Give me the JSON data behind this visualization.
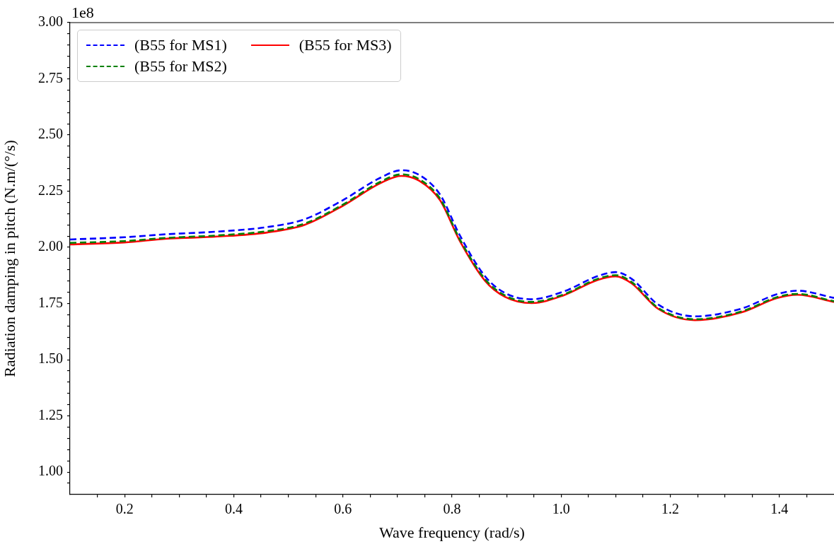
{
  "chart_data": {
    "type": "line",
    "xlabel": "Wave frequency (rad/s)",
    "ylabel": "Radiation damping in pitch (N.m/(°/s)",
    "annotations": [
      "1e8"
    ],
    "x": [
      0.1,
      0.2,
      0.275,
      0.37,
      0.461,
      0.53,
      0.6,
      0.669,
      0.707,
      0.74,
      0.778,
      0.814,
      0.861,
      0.897,
      0.946,
      1.004,
      1.067,
      1.1,
      1.129,
      1.178,
      1.245,
      1.331,
      1.395,
      1.433,
      1.5
    ],
    "series": [
      {
        "name": "(B55 for MS1)",
        "color": "#0000ff",
        "line_style": "dashed",
        "values": [
          2.035,
          2.045,
          2.058,
          2.07,
          2.09,
          2.125,
          2.21,
          2.31,
          2.343,
          2.322,
          2.235,
          2.055,
          1.87,
          1.797,
          1.769,
          1.803,
          1.872,
          1.89,
          1.86,
          1.745,
          1.693,
          1.728,
          1.791,
          1.807,
          1.775
        ]
      },
      {
        "name": "(B55 for MS2)",
        "color": "#008000",
        "line_style": "dashed",
        "values": [
          2.02,
          2.028,
          2.042,
          2.053,
          2.072,
          2.106,
          2.19,
          2.292,
          2.325,
          2.303,
          2.217,
          2.037,
          1.857,
          1.786,
          1.757,
          1.79,
          1.86,
          1.876,
          1.846,
          1.73,
          1.68,
          1.715,
          1.778,
          1.793,
          1.76
        ]
      },
      {
        "name": "(B55 for MS3)",
        "color": "#ff0000",
        "line_style": "solid",
        "values": [
          2.013,
          2.022,
          2.038,
          2.048,
          2.066,
          2.1,
          2.185,
          2.286,
          2.318,
          2.296,
          2.21,
          2.03,
          1.85,
          1.78,
          1.752,
          1.786,
          1.855,
          1.871,
          1.84,
          1.726,
          1.676,
          1.711,
          1.774,
          1.789,
          1.757
        ]
      }
    ],
    "xlim": [
      0.1,
      1.5
    ],
    "xticks": [
      {
        "value": 0.15,
        "label": null
      },
      0.2,
      {
        "value": 0.25,
        "label": null
      },
      {
        "value": 0.3,
        "label": null
      },
      {
        "value": 0.35,
        "label": null
      },
      0.4,
      {
        "value": 0.45,
        "label": null
      },
      {
        "value": 0.5,
        "label": null
      },
      {
        "value": 0.55,
        "label": null
      },
      0.6,
      {
        "value": 0.65,
        "label": null
      },
      {
        "value": 0.7,
        "label": null
      },
      {
        "value": 0.75,
        "label": null
      },
      0.8,
      {
        "value": 0.85,
        "label": null
      },
      {
        "value": 0.9,
        "label": null
      },
      {
        "value": 0.95,
        "label": null
      },
      {
        "value": 1.0,
        "label": "1.0"
      },
      {
        "value": 1.05,
        "label": null
      },
      {
        "value": 1.1,
        "label": null
      },
      {
        "value": 1.15,
        "label": null
      },
      1.2,
      {
        "value": 1.25,
        "label": null
      },
      {
        "value": 1.3,
        "label": null
      },
      {
        "value": 1.35,
        "label": null
      },
      1.4,
      {
        "value": 1.45,
        "label": null
      }
    ],
    "ylim": [
      0.9,
      3.0
    ],
    "yticks": [
      {
        "value": 0.95,
        "label": null
      },
      {
        "value": 1.0,
        "label": "1.00"
      },
      {
        "value": 1.05,
        "label": null
      },
      {
        "value": 1.1,
        "label": null
      },
      {
        "value": 1.15,
        "label": null
      },
      {
        "value": 1.2,
        "label": null
      },
      1.25,
      {
        "value": 1.3,
        "label": null
      },
      {
        "value": 1.35,
        "label": null
      },
      {
        "value": 1.4,
        "label": null
      },
      {
        "value": 1.45,
        "label": null
      },
      {
        "value": 1.5,
        "label": "1.50"
      },
      {
        "value": 1.55,
        "label": null
      },
      {
        "value": 1.6,
        "label": null
      },
      {
        "value": 1.65,
        "label": null
      },
      {
        "value": 1.7,
        "label": null
      },
      1.75,
      {
        "value": 1.8,
        "label": null
      },
      {
        "value": 1.85,
        "label": null
      },
      {
        "value": 1.9,
        "label": null
      },
      {
        "value": 1.95,
        "label": null
      },
      {
        "value": 2.0,
        "label": "2.00"
      },
      {
        "value": 2.05,
        "label": null
      },
      {
        "value": 2.1,
        "label": null
      },
      {
        "value": 2.15,
        "label": null
      },
      {
        "value": 2.2,
        "label": null
      },
      2.25,
      {
        "value": 2.3,
        "label": null
      },
      {
        "value": 2.35,
        "label": null
      },
      {
        "value": 2.4,
        "label": null
      },
      {
        "value": 2.45,
        "label": null
      },
      {
        "value": 2.5,
        "label": "2.50"
      },
      {
        "value": 2.55,
        "label": null
      },
      {
        "value": 2.6,
        "label": null
      },
      {
        "value": 2.65,
        "label": null
      },
      {
        "value": 2.7,
        "label": null
      },
      2.75,
      {
        "value": 2.8,
        "label": null
      },
      {
        "value": 2.85,
        "label": null
      },
      {
        "value": 2.9,
        "label": null
      },
      {
        "value": 2.95,
        "label": null
      },
      {
        "value": 3.0,
        "label": "3.00"
      }
    ],
    "grid": false,
    "legend": "top left",
    "marker": "none"
  }
}
